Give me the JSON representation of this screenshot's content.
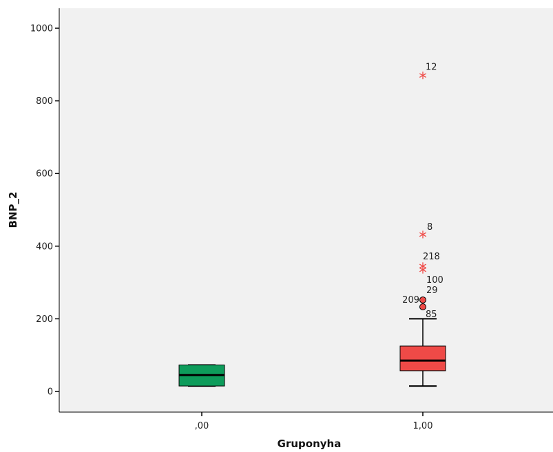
{
  "chart_data": {
    "type": "boxplot",
    "xlabel": "Gruponyha",
    "ylabel": "BNP_2",
    "ylim": [
      -55,
      1055
    ],
    "yticks": [
      0,
      200,
      400,
      600,
      800,
      1000
    ],
    "yticklabels": [
      "0",
      "200",
      "400",
      "600",
      "800",
      "1000"
    ],
    "grid": false,
    "colors": {
      "plot_background": "#f1f1f1",
      "group_0": "#0e9c5b",
      "group_1": "#ef4a47",
      "extreme_marker": "#ef4a47"
    },
    "categories": [
      ",00",
      "1,00"
    ],
    "boxes": [
      {
        "category": ",00",
        "min": 15,
        "q1": 15,
        "median": 45,
        "q3": 73,
        "max": 73,
        "outliers": [],
        "extremes": []
      },
      {
        "category": "1,00",
        "min": 15,
        "q1": 57,
        "median": 85,
        "q3": 125,
        "max": 200,
        "outliers": [
          {
            "value": 252,
            "label": "29"
          },
          {
            "value": 233,
            "label": "209"
          }
        ],
        "extremes": [
          {
            "value": 870,
            "label": "12"
          },
          {
            "value": 432,
            "label": "8"
          },
          {
            "value": 345,
            "label": "218"
          },
          {
            "value": 335,
            "label": "100"
          }
        ],
        "annotations": [
          {
            "value": 205,
            "label": "85"
          }
        ]
      }
    ]
  }
}
